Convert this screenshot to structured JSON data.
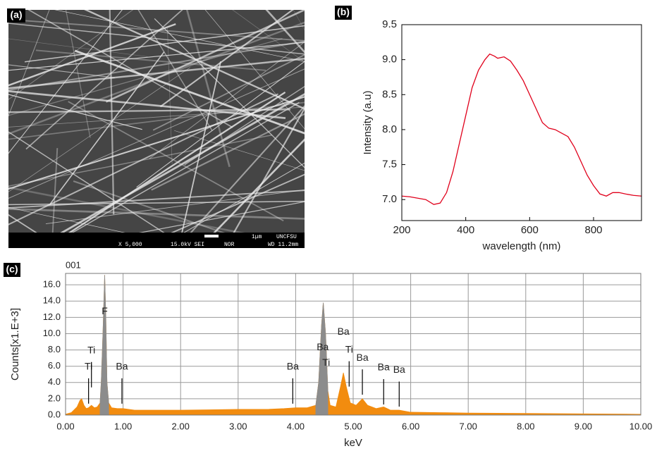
{
  "image_panel": {
    "label": "(a)",
    "scale_bar": "1μm",
    "info": [
      "X 5,000",
      "15.0kV SEI",
      "NOR",
      "UNCFSU",
      "WD 11.2mm"
    ]
  },
  "chart_data": [
    {
      "type": "line",
      "label": "(b)",
      "x_label": "wavelength (nm)",
      "y_label": "Intensity (a.u)",
      "x": [
        200,
        225,
        250,
        275,
        300,
        320,
        340,
        360,
        380,
        400,
        420,
        440,
        460,
        475,
        490,
        500,
        520,
        540,
        560,
        580,
        600,
        620,
        640,
        660,
        680,
        700,
        720,
        740,
        760,
        780,
        800,
        820,
        840,
        860,
        880,
        900,
        925,
        950
      ],
      "series": [
        {
          "color": "#e0001b",
          "values": [
            7.05,
            7.04,
            7.02,
            7.0,
            6.93,
            6.95,
            7.1,
            7.4,
            7.8,
            8.2,
            8.6,
            8.85,
            9.0,
            9.08,
            9.05,
            9.02,
            9.04,
            8.98,
            8.85,
            8.7,
            8.5,
            8.3,
            8.1,
            8.02,
            8.0,
            7.95,
            7.9,
            7.75,
            7.55,
            7.35,
            7.2,
            7.08,
            7.05,
            7.1,
            7.1,
            7.08,
            7.06,
            7.05
          ]
        }
      ],
      "xlim": [
        200,
        950
      ],
      "ylim": [
        6.7,
        9.5
      ],
      "xticks": [
        200,
        400,
        600,
        800
      ],
      "yticks": [
        {
          "value": 7,
          "label": "7.0"
        },
        7.5,
        {
          "value": 8,
          "label": "8.0"
        },
        8.5,
        {
          "value": 9,
          "label": "9.0"
        },
        9.5
      ],
      "grid": false
    },
    {
      "type": "area",
      "label": "(c)",
      "title": "001",
      "x_label": "keV",
      "y_label": "Counts[x1.E+3]",
      "x": [
        0,
        0.1,
        0.2,
        0.25,
        0.28,
        0.32,
        0.36,
        0.4,
        0.45,
        0.5,
        0.55,
        0.6,
        0.62,
        0.65,
        0.68,
        0.7,
        0.72,
        0.75,
        0.8,
        0.9,
        1.0,
        1.2,
        1.5,
        2.0,
        2.5,
        3.0,
        3.5,
        3.8,
        4.0,
        4.2,
        4.35,
        4.4,
        4.45,
        4.48,
        4.52,
        4.56,
        4.6,
        4.7,
        4.78,
        4.83,
        4.88,
        4.95,
        5.05,
        5.16,
        5.25,
        5.4,
        5.53,
        5.65,
        5.8,
        6.0,
        6.5,
        7.0,
        8.0,
        9.0,
        10.0
      ],
      "series": [
        {
          "color": "#f28c0f",
          "values": [
            0.1,
            0.3,
            1.0,
            1.8,
            2.0,
            1.2,
            0.8,
            0.9,
            1.2,
            0.9,
            1.0,
            1.5,
            4.0,
            10.0,
            17.2,
            12.0,
            4.0,
            1.5,
            0.9,
            0.8,
            0.8,
            0.6,
            0.6,
            0.6,
            0.65,
            0.7,
            0.7,
            0.8,
            0.9,
            0.9,
            1.2,
            4.0,
            11.0,
            13.8,
            10.0,
            3.0,
            1.2,
            1.0,
            3.5,
            5.2,
            3.5,
            1.5,
            1.2,
            2.0,
            1.2,
            0.8,
            1.0,
            0.6,
            0.6,
            0.35,
            0.3,
            0.25,
            0.2,
            0.15,
            0.1
          ]
        },
        {
          "color": "#8c8c8c",
          "values": [
            null,
            null,
            null,
            null,
            null,
            null,
            null,
            null,
            null,
            null,
            null,
            1.5,
            4.0,
            10.0,
            17.2,
            12.0,
            4.0,
            1.5,
            null,
            null,
            null,
            null,
            null,
            null,
            null,
            null,
            null,
            null,
            null,
            null,
            1.2,
            4.0,
            11.0,
            13.8,
            10.0,
            3.0,
            null,
            null,
            null,
            null,
            null,
            null,
            null,
            null,
            null,
            null,
            null,
            null,
            null,
            null,
            null,
            null,
            null,
            null,
            null
          ]
        }
      ],
      "annotations": [
        {
          "text": "Ti",
          "x": 0.4,
          "y": 5.9,
          "marker": true
        },
        {
          "text": "Ti",
          "x": 0.45,
          "y": 7.9,
          "marker": true
        },
        {
          "text": "F",
          "x": 0.68,
          "y": 12.7,
          "marker": false
        },
        {
          "text": "Ba",
          "x": 0.98,
          "y": 5.9,
          "marker": true
        },
        {
          "text": "Ba",
          "x": 3.95,
          "y": 5.9,
          "marker": true
        },
        {
          "text": "Ba",
          "x": 4.47,
          "y": 8.3,
          "marker": false
        },
        {
          "text": "Ti",
          "x": 4.53,
          "y": 6.4,
          "marker": false
        },
        {
          "text": "Ba",
          "x": 4.83,
          "y": 10.2,
          "marker": false
        },
        {
          "text": "Ti",
          "x": 4.93,
          "y": 8.0,
          "marker": true
        },
        {
          "text": "Ba",
          "x": 5.16,
          "y": 7.0,
          "marker": true
        },
        {
          "text": "Ba",
          "x": 5.53,
          "y": 5.8,
          "marker": true
        },
        {
          "text": "Ba",
          "x": 5.8,
          "y": 5.5,
          "marker": true
        }
      ],
      "xlim": [
        0,
        10
      ],
      "ylim": [
        0,
        17.4
      ],
      "xticks": [
        {
          "value": 0,
          "label": "0.00"
        },
        {
          "value": 1,
          "label": "1.00"
        },
        {
          "value": 2,
          "label": "2.00"
        },
        {
          "value": 3,
          "label": "3.00"
        },
        {
          "value": 4,
          "label": "4.00"
        },
        {
          "value": 5,
          "label": "5.00"
        },
        {
          "value": 6,
          "label": "6.00"
        },
        {
          "value": 7,
          "label": "7.00"
        },
        {
          "value": 8,
          "label": "8.00"
        },
        {
          "value": 9,
          "label": "9.00"
        },
        {
          "value": 10,
          "label": "10.00"
        }
      ],
      "yticks": [
        {
          "value": 0,
          "label": "0.0"
        },
        {
          "value": 2,
          "label": "2.0"
        },
        {
          "value": 4,
          "label": "4.0"
        },
        {
          "value": 6,
          "label": "6.0"
        },
        {
          "value": 8,
          "label": "8.0"
        },
        {
          "value": 10,
          "label": "10.0"
        },
        {
          "value": 12,
          "label": "12.0"
        },
        {
          "value": 14,
          "label": "14.0"
        },
        {
          "value": 16,
          "label": "16.0"
        }
      ],
      "grid": true
    }
  ]
}
